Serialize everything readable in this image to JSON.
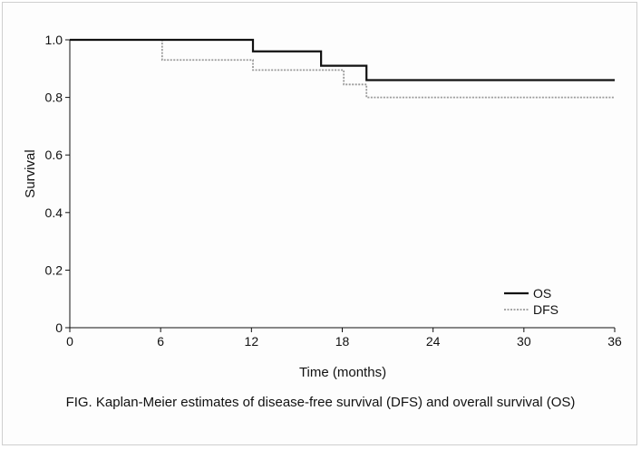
{
  "chart_data": {
    "type": "line",
    "step": true,
    "title": "",
    "xlabel": "Time (months)",
    "ylabel": "Survival",
    "xlim": [
      0,
      36
    ],
    "ylim": [
      0,
      1.0
    ],
    "xticks": [
      0,
      6,
      12,
      18,
      24,
      30,
      36
    ],
    "yticks": [
      0,
      0.2,
      0.4,
      0.6,
      0.8,
      1.0
    ],
    "ytick_labels": [
      "0",
      "0.2",
      "0.4",
      "0.6",
      "0.8",
      "1.0"
    ],
    "grid": false,
    "legend_position": "bottom-right",
    "series": [
      {
        "name": "OS",
        "style": "solid",
        "color": "#111111",
        "x": [
          0,
          12.1,
          16.6,
          19.6,
          36
        ],
        "y": [
          1.0,
          0.96,
          0.91,
          0.86,
          0.86
        ]
      },
      {
        "name": "DFS",
        "style": "dotted",
        "color": "#9a9a9a",
        "x": [
          0,
          6.1,
          12.1,
          18.1,
          19.6,
          36
        ],
        "y": [
          1.0,
          0.93,
          0.895,
          0.845,
          0.8,
          0.8
        ]
      }
    ]
  },
  "caption": "FIG.  Kaplan-Meier estimates of disease-free survival (DFS) and overall survival (OS)"
}
